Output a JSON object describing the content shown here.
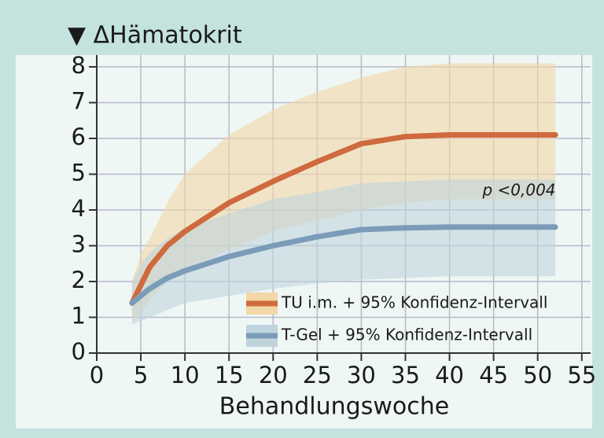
{
  "chart_data": {
    "type": "line",
    "title": "▼ ΔHämatokrit",
    "x_label": "Behandlungswoche",
    "annotation": "p <0,004",
    "x": [
      4,
      5,
      6,
      8,
      10,
      15,
      20,
      25,
      30,
      35,
      40,
      45,
      52
    ],
    "series": [
      {
        "name": "TU i.m. + 95% Konfidenz-Intervall",
        "color": "#cf6a3e",
        "band_color": "#f3d7a6",
        "values": [
          1.4,
          1.9,
          2.4,
          3.0,
          3.4,
          4.2,
          4.8,
          5.35,
          5.85,
          6.05,
          6.1,
          6.1,
          6.1
        ],
        "upper": [
          2.0,
          2.8,
          3.2,
          4.2,
          5.0,
          6.1,
          6.8,
          7.3,
          7.7,
          8.0,
          8.1,
          8.1,
          8.1
        ],
        "lower": [
          0.9,
          1.1,
          1.5,
          2.0,
          2.3,
          2.9,
          3.4,
          3.7,
          4.0,
          4.2,
          4.3,
          4.3,
          4.3
        ]
      },
      {
        "name": "T-Gel + 95% Konfidenz-Intervall",
        "color": "#7b9cb8",
        "band_color": "#bfd4dc",
        "values": [
          1.4,
          1.6,
          1.8,
          2.1,
          2.3,
          2.7,
          3.0,
          3.25,
          3.45,
          3.5,
          3.52,
          3.52,
          3.52
        ],
        "upper": [
          2.0,
          2.5,
          2.8,
          3.2,
          3.5,
          3.9,
          4.3,
          4.5,
          4.75,
          4.8,
          4.85,
          4.85,
          4.85
        ],
        "lower": [
          0.8,
          0.9,
          1.0,
          1.2,
          1.4,
          1.6,
          1.8,
          1.95,
          2.05,
          2.1,
          2.15,
          2.15,
          2.15
        ]
      }
    ],
    "xlim": [
      0,
      56
    ],
    "xticks": [
      0,
      5,
      10,
      15,
      20,
      25,
      30,
      35,
      40,
      45,
      50,
      55
    ],
    "ylim": [
      0,
      8.33
    ],
    "yticks": [
      0,
      1,
      2,
      3,
      4,
      5,
      6,
      7,
      8
    ],
    "grid": true
  }
}
